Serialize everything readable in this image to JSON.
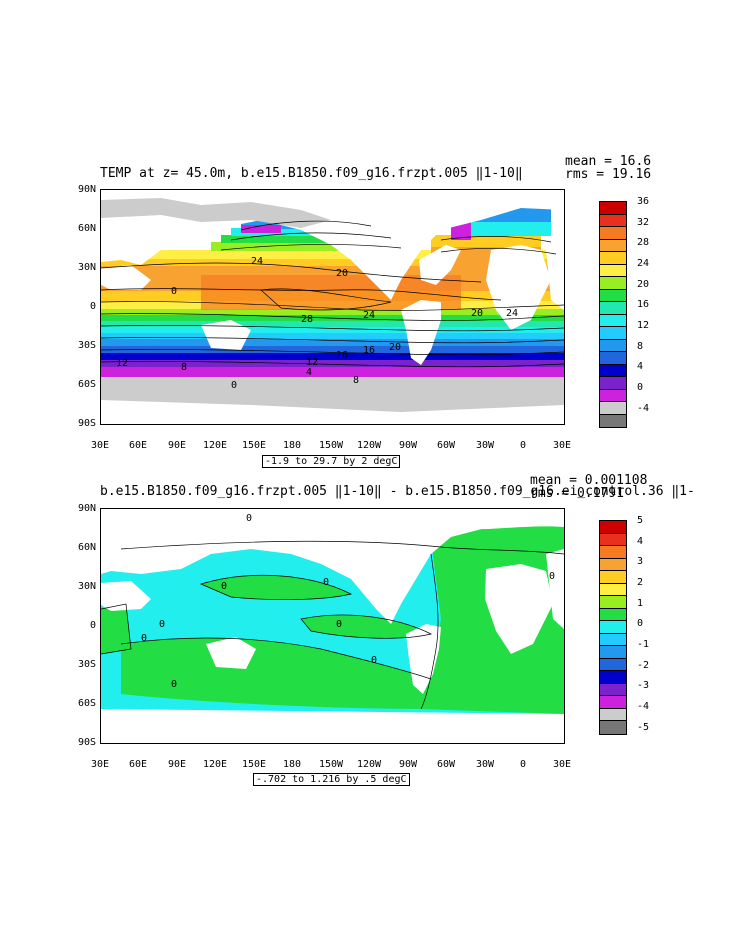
{
  "panel1": {
    "title": "TEMP at z=  45.0m, b.e15.B1850.f09_g16.frzpt.005 ‖1-10‖",
    "mean": "mean = 16.6",
    "rms": "rms = 19.16",
    "range": "-1.9 to 29.7 by 2 degC",
    "colorbar": [
      "36",
      "32",
      "28",
      "24",
      "20",
      "16",
      "12",
      "8",
      "4",
      "0",
      "-4"
    ],
    "colors": [
      "#cc0000",
      "#e8301c",
      "#f57a22",
      "#f8a232",
      "#ffcc22",
      "#ffee44",
      "#99ee22",
      "#22dd44",
      "#22e8b0",
      "#22eeee",
      "#22ccff",
      "#2299ee",
      "#2266dd",
      "#0000cc",
      "#7a22cc",
      "#cc22dd",
      "#cccccc",
      "#777777"
    ],
    "contour_labels": [
      "28",
      "24",
      "20",
      "16",
      "12",
      "8",
      "4",
      "0",
      "24",
      "20",
      "16",
      "12",
      "8",
      "20",
      "24",
      "0"
    ]
  },
  "panel2": {
    "title": "b.e15.B1850.f09_g16.frzpt.005 ‖1-10‖ - b.e15.B1850.f09_g16.ei_control.36 ‖1-",
    "mean": "mean = 0.001108",
    "rms": "rms = 0.1791",
    "range": "-.702 to 1.216 by .5 degC",
    "colorbar": [
      "5",
      "4",
      "3",
      "2",
      "1",
      "0",
      "-1",
      "-2",
      "-3",
      "-4",
      "-5"
    ],
    "colors": [
      "#cc0000",
      "#e8301c",
      "#f57a22",
      "#f8a232",
      "#ffcc22",
      "#ffee44",
      "#99ee22",
      "#22dd44",
      "#22eeee",
      "#22ccff",
      "#2299ee",
      "#2266dd",
      "#0000cc",
      "#7a22cc",
      "#cc22dd",
      "#cccccc",
      "#777777",
      "#555555",
      "#555555",
      "#555555"
    ],
    "contour_labels": [
      "0",
      "0",
      "0",
      "0",
      "0",
      "0",
      "0",
      "0",
      "0"
    ]
  },
  "axes": {
    "lat": [
      "90N",
      "60N",
      "30N",
      "0",
      "30S",
      "60S",
      "90S"
    ],
    "lon": [
      "30E",
      "60E",
      "90E",
      "120E",
      "150E",
      "180",
      "150W",
      "120W",
      "90W",
      "60W",
      "30W",
      "0",
      "30E"
    ]
  }
}
